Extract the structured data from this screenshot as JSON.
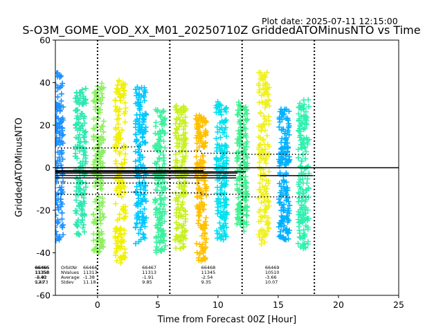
{
  "plot_date": "Plot date: 2025-07-11 12:15:00",
  "colors": {
    "axes": "#000000",
    "background": "#ffffff",
    "bias_line": "#000000",
    "cycle_divider": "#000000"
  },
  "chart_data": {
    "type": "scatter",
    "title": "S-O3M_GOME_VOD_XX_M01_20250710Z GriddedATOMinusNTO vs Time",
    "xlabel": "Time from Forecast 00Z [Hour]",
    "ylabel": "GriddedATOMinusNTO",
    "xlim": [
      -3.5,
      25
    ],
    "ylim": [
      -60,
      60
    ],
    "xticks": [
      0,
      5,
      10,
      15,
      20,
      25
    ],
    "yticks": [
      -60,
      -40,
      -20,
      0,
      20,
      40,
      60
    ],
    "grid": false,
    "marker": "+",
    "zero_line": 0,
    "cycle_boundaries": [
      0,
      6,
      12,
      18
    ],
    "swaths": [
      {
        "x": -3.3,
        "color": "#1e90ff",
        "ymin": -35,
        "ymax": 45
      },
      {
        "x": -1.4,
        "color": "#2ee8b0",
        "ymin": -32,
        "ymax": 38
      },
      {
        "x": 0.1,
        "color": "#8cf060",
        "ymin": -40,
        "ymax": 40
      },
      {
        "x": 1.9,
        "color": "#f0f000",
        "ymin": -45,
        "ymax": 42
      },
      {
        "x": 3.6,
        "color": "#00c8ff",
        "ymin": -36,
        "ymax": 38
      },
      {
        "x": 5.2,
        "color": "#3cf0a0",
        "ymin": -40,
        "ymax": 28
      },
      {
        "x": 6.9,
        "color": "#c8f020",
        "ymin": -38,
        "ymax": 30
      },
      {
        "x": 8.6,
        "color": "#ffc000",
        "ymin": -45,
        "ymax": 25
      },
      {
        "x": 10.3,
        "color": "#00e0f0",
        "ymin": -34,
        "ymax": 31
      },
      {
        "x": 12.0,
        "color": "#40f090",
        "ymin": -30,
        "ymax": 31
      },
      {
        "x": 13.8,
        "color": "#f0f020",
        "ymin": -36,
        "ymax": 45
      },
      {
        "x": 15.5,
        "color": "#00b0ff",
        "ymin": -34,
        "ymax": 28
      },
      {
        "x": 17.1,
        "color": "#30f0b0",
        "ymin": -38,
        "ymax": 32
      }
    ],
    "bias_segments": [
      {
        "x0": -3.5,
        "x1": 25,
        "y": 0
      },
      {
        "x0": -3.5,
        "x1": 8.8,
        "y": -1.4
      },
      {
        "x0": -3.5,
        "x1": 12.3,
        "y": -1.9
      },
      {
        "x0": -3.5,
        "x1": 11.6,
        "y": -2.5
      },
      {
        "x0": -3.5,
        "x1": 11.5,
        "y": -3.6
      },
      {
        "x0": -3.5,
        "x1": 11.5,
        "y": -4.8
      },
      {
        "x0": 13.5,
        "x1": 17.9,
        "y": -3.7
      }
    ],
    "stdev_segments": [
      {
        "x0": -3.3,
        "x1": 2.0,
        "y": 9.3
      },
      {
        "x0": 2.0,
        "x1": 3.6,
        "y": 9.8
      },
      {
        "x0": 3.6,
        "x1": 8.6,
        "y": 7.8
      },
      {
        "x0": 8.6,
        "x1": 12.0,
        "y": 6.8
      },
      {
        "x0": 12.0,
        "x1": 17.5,
        "y": 6.3
      },
      {
        "x0": -3.3,
        "x1": 2.0,
        "y": -12.5
      },
      {
        "x0": 2.0,
        "x1": 3.6,
        "y": -11.5
      },
      {
        "x0": 3.6,
        "x1": 8.6,
        "y": -11.8
      },
      {
        "x0": 8.6,
        "x1": 12.0,
        "y": -12.5
      },
      {
        "x0": 12.0,
        "x1": 17.5,
        "y": -13.7
      },
      {
        "x0": -3.3,
        "x1": 8.6,
        "y": -7.2
      }
    ],
    "stats_labels": {
      "rows": [
        "OrbitNr",
        "NValues",
        "Average",
        "Stdev"
      ],
      "blocks": [
        {
          "x": -5.0,
          "lines": [
            "66465",
            "11350",
            "-4.82",
            "12.73"
          ]
        },
        {
          "x": -5.0,
          "lines": [
            "66466",
            "11350",
            "-1.40",
            "9.49"
          ]
        },
        {
          "x": -1.2,
          "lines": [
            "66466",
            "11313",
            "-1.38",
            "11.18"
          ]
        },
        {
          "x": 3.7,
          "lines": [
            "66467",
            "11313",
            "-1.91",
            "9.85"
          ]
        },
        {
          "x": 8.6,
          "lines": [
            "66468",
            "11345",
            "-2.54",
            "9.35"
          ]
        },
        {
          "x": 13.9,
          "lines": [
            "66469",
            "10510",
            "-3.66",
            "10.07"
          ]
        }
      ]
    }
  }
}
